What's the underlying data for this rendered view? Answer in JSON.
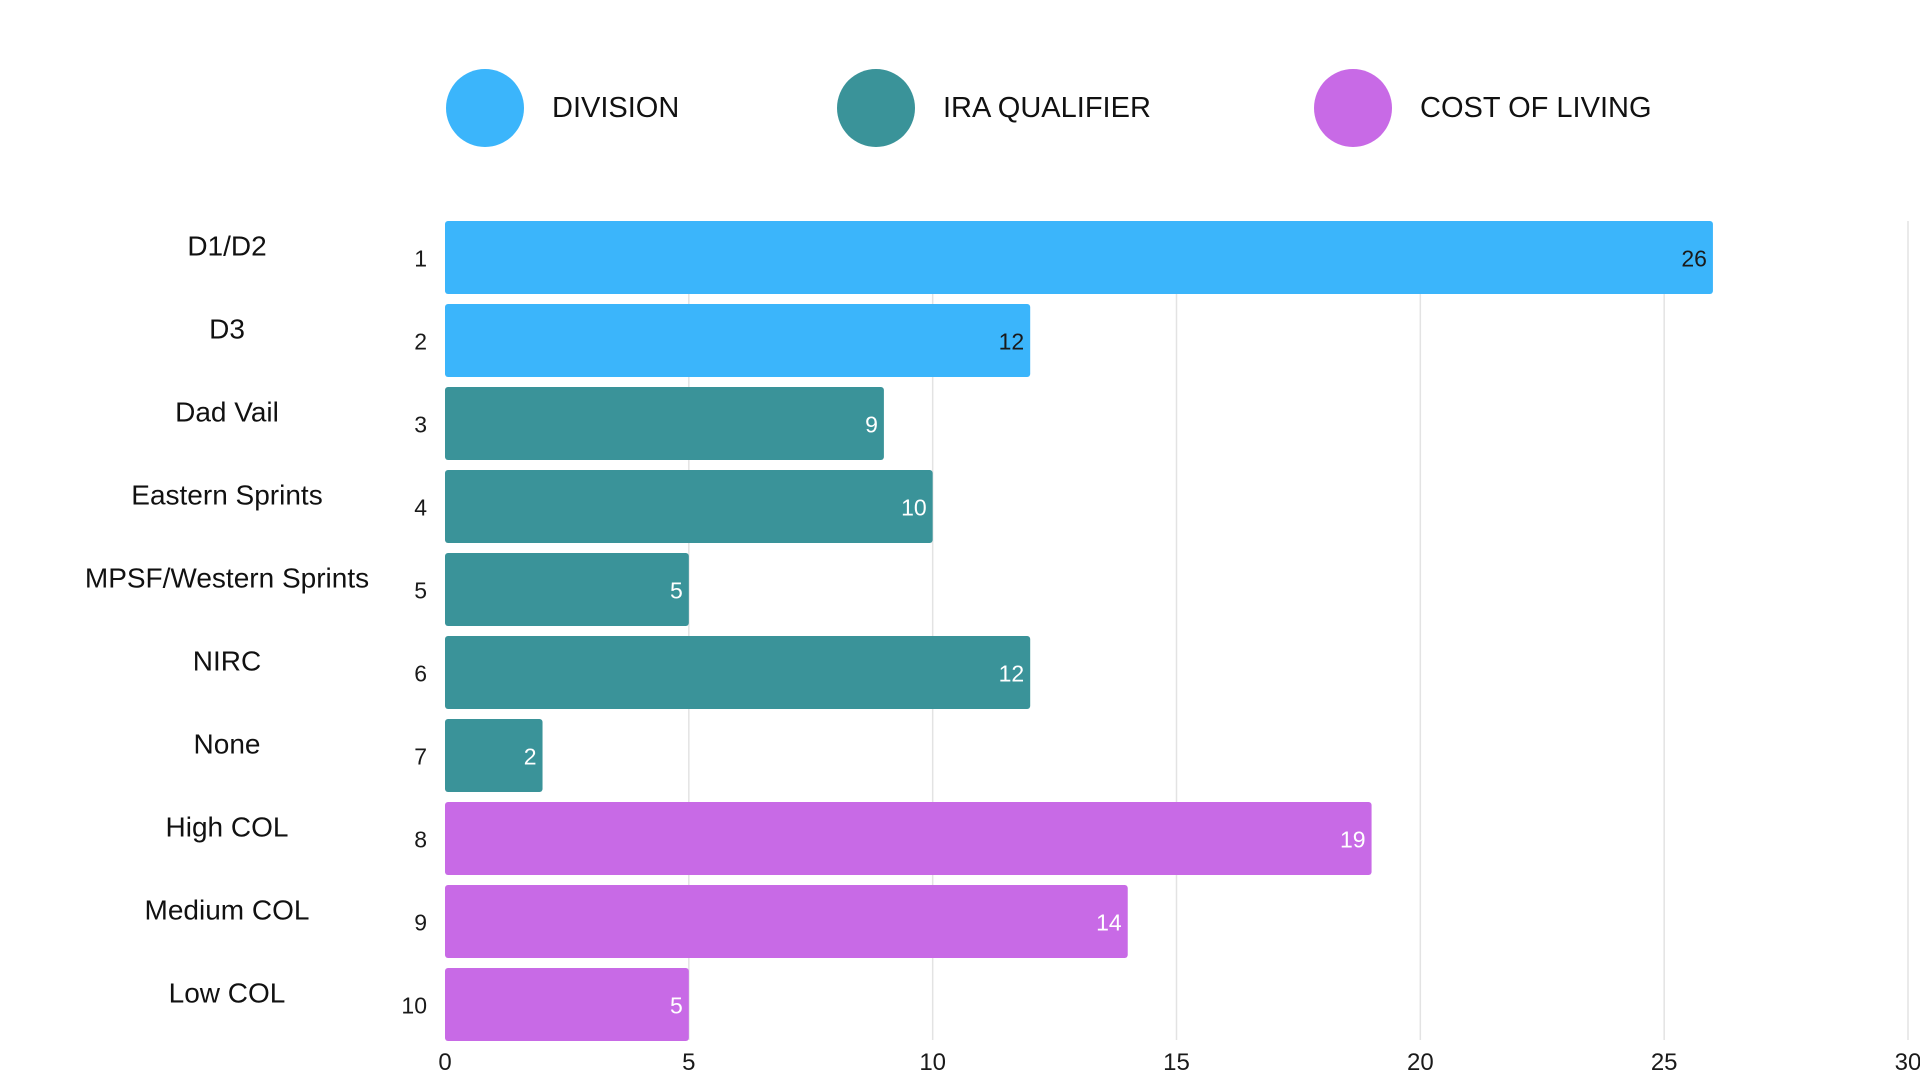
{
  "chart_data": {
    "type": "bar",
    "orientation": "horizontal",
    "title": "",
    "xlabel": "",
    "ylabel": "",
    "xlim": [
      0,
      30
    ],
    "x_ticks": [
      "0",
      "5",
      "10",
      "15",
      "20",
      "25",
      "30"
    ],
    "grid": true,
    "legend_placement": "top",
    "legend": [
      {
        "group": "division",
        "label": "DIVISION",
        "color": "#3bb5fb"
      },
      {
        "group": "ira",
        "label": "IRA QUALIFIER",
        "color": "#3a9399"
      },
      {
        "group": "col",
        "label": "COST OF LIVING",
        "color": "#c86ae6"
      }
    ],
    "bars": [
      {
        "label": "D1/D2",
        "rank": "1",
        "value": 26,
        "group": "division"
      },
      {
        "label": "D3",
        "rank": "2",
        "value": 12,
        "group": "division"
      },
      {
        "label": "Dad Vail",
        "rank": "3",
        "value": 9,
        "group": "ira"
      },
      {
        "label": "Eastern Sprints",
        "rank": "4",
        "value": 10,
        "group": "ira"
      },
      {
        "label": "MPSF/Western Sprints",
        "rank": "5",
        "value": 5,
        "group": "ira"
      },
      {
        "label": "NIRC",
        "rank": "6",
        "value": 12,
        "group": "ira"
      },
      {
        "label": "None",
        "rank": "7",
        "value": 2,
        "group": "ira"
      },
      {
        "label": "High COL",
        "rank": "8",
        "value": 19,
        "group": "col"
      },
      {
        "label": "Medium COL",
        "rank": "9",
        "value": 14,
        "group": "col"
      },
      {
        "label": "Low COL",
        "rank": "10",
        "value": 5,
        "group": "col"
      }
    ],
    "value_label_colors": {
      "division": "#1a1a1a",
      "ira": "#ffffff",
      "col": "#ffffff"
    }
  }
}
